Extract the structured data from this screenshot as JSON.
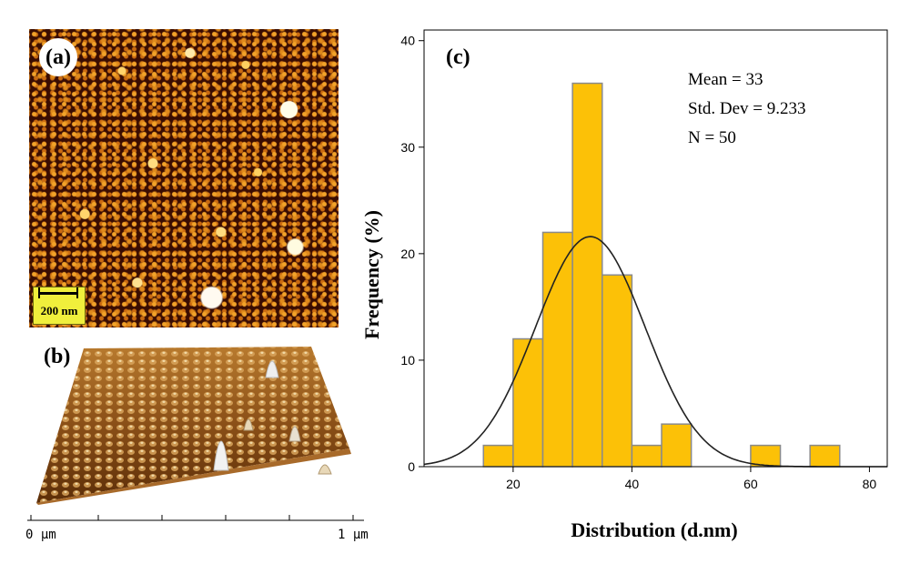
{
  "panel_a": {
    "label": "(a)",
    "scale_bar": "200 nm"
  },
  "panel_b": {
    "label": "(b)",
    "axis_start": "0 µm",
    "axis_end": "1 µm"
  },
  "chart_data": {
    "type": "bar",
    "panel_label": "(c)",
    "title": "",
    "xlabel": "Distribution (d.nm)",
    "ylabel": "Frequency (%)",
    "xlim": [
      5,
      83
    ],
    "ylim": [
      0,
      41
    ],
    "x_ticks": [
      20,
      40,
      60,
      80
    ],
    "y_ticks": [
      0,
      10,
      20,
      30,
      40
    ],
    "bins": [
      {
        "start": 15,
        "end": 20,
        "value": 2
      },
      {
        "start": 20,
        "end": 25,
        "value": 12
      },
      {
        "start": 25,
        "end": 30,
        "value": 22
      },
      {
        "start": 30,
        "end": 35,
        "value": 36
      },
      {
        "start": 35,
        "end": 40,
        "value": 18
      },
      {
        "start": 40,
        "end": 45,
        "value": 2
      },
      {
        "start": 45,
        "end": 50,
        "value": 4
      },
      {
        "start": 60,
        "end": 65,
        "value": 2
      },
      {
        "start": 70,
        "end": 75,
        "value": 2
      }
    ],
    "normal_curve": {
      "mean": 33,
      "std": 9.233,
      "peak": 21.6
    },
    "stats": [
      "Mean = 33",
      "Std. Dev = 9.233",
      "N = 50"
    ],
    "bar_color": "#fcc107",
    "bar_edge_color": "#8a8a8a",
    "curve_color": "#222222"
  }
}
